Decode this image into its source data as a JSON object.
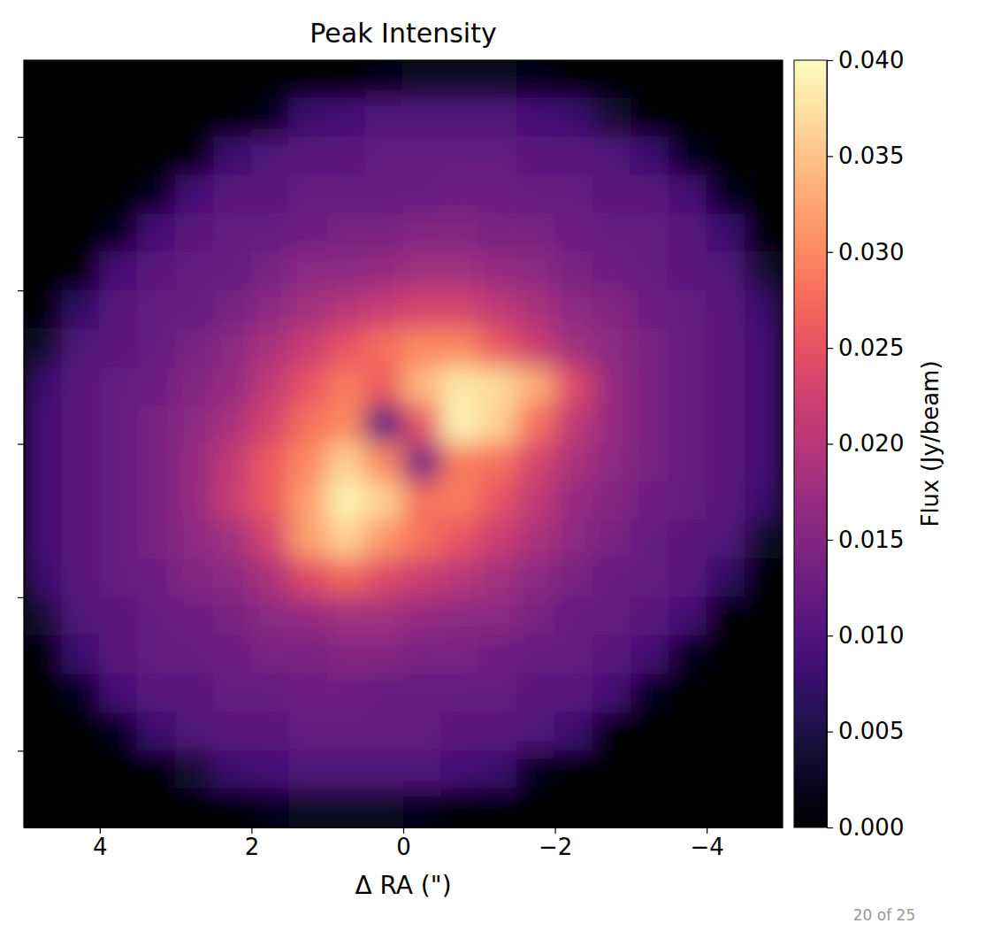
{
  "chart_data": {
    "type": "heatmap",
    "title": "Peak Intensity",
    "x_label": "Δ RA (\")",
    "x": [
      4.75,
      4.25,
      3.75,
      3.25,
      2.75,
      2.25,
      1.75,
      1.25,
      0.75,
      0.25,
      -0.25,
      -0.75,
      -1.25,
      -1.75,
      -2.25,
      -2.75,
      -3.25,
      -3.75,
      -4.25,
      -4.75
    ],
    "y": [
      4.75,
      4.25,
      3.75,
      3.25,
      2.75,
      2.25,
      1.75,
      1.25,
      0.75,
      0.25,
      -0.25,
      -0.75,
      -1.25,
      -1.75,
      -2.25,
      -2.75,
      -3.25,
      -3.75,
      -4.25,
      -4.75
    ],
    "values": [
      [
        0,
        0,
        0,
        0,
        0,
        0,
        0,
        0,
        0,
        0.002,
        0.003,
        0.003,
        0.003,
        0.002,
        0,
        0,
        0,
        0,
        0,
        0
      ],
      [
        0,
        0,
        0,
        0,
        0,
        0,
        0.002,
        0.008,
        0.009,
        0.01,
        0.01,
        0.01,
        0.01,
        0.009,
        0.008,
        0.004,
        0,
        0,
        0,
        0
      ],
      [
        0,
        0,
        0,
        0,
        0,
        0.008,
        0.01,
        0.011,
        0.011,
        0.012,
        0.012,
        0.012,
        0.012,
        0.011,
        0.011,
        0.01,
        0.008,
        0.002,
        0,
        0
      ],
      [
        0,
        0,
        0,
        0.002,
        0.009,
        0.011,
        0.011,
        0.012,
        0.012,
        0.012,
        0.012,
        0.013,
        0.013,
        0.012,
        0.012,
        0.011,
        0.011,
        0.009,
        0.002,
        0
      ],
      [
        0,
        0,
        0.002,
        0.009,
        0.011,
        0.012,
        0.012,
        0.013,
        0.014,
        0.014,
        0.015,
        0.015,
        0.014,
        0.014,
        0.013,
        0.012,
        0.012,
        0.011,
        0.008,
        0
      ],
      [
        0,
        0,
        0.009,
        0.011,
        0.012,
        0.012,
        0.014,
        0.016,
        0.016,
        0.017,
        0.018,
        0.018,
        0.017,
        0.016,
        0.014,
        0.013,
        0.012,
        0.011,
        0.01,
        0.004
      ],
      [
        0,
        0.007,
        0.011,
        0.012,
        0.012,
        0.014,
        0.016,
        0.018,
        0.02,
        0.022,
        0.023,
        0.023,
        0.021,
        0.019,
        0.016,
        0.015,
        0.013,
        0.012,
        0.011,
        0.008
      ],
      [
        0.003,
        0.01,
        0.011,
        0.012,
        0.014,
        0.016,
        0.019,
        0.022,
        0.025,
        0.028,
        0.03,
        0.03,
        0.026,
        0.022,
        0.018,
        0.016,
        0.014,
        0.012,
        0.011,
        0.009
      ],
      [
        0.008,
        0.011,
        0.012,
        0.013,
        0.015,
        0.017,
        0.021,
        0.025,
        0.029,
        0.026,
        0.034,
        0.038,
        0.037,
        0.033,
        0.024,
        0.017,
        0.014,
        0.012,
        0.011,
        0.009
      ],
      [
        0.009,
        0.011,
        0.012,
        0.014,
        0.016,
        0.019,
        0.023,
        0.028,
        0.03,
        0.012,
        0.025,
        0.039,
        0.036,
        0.028,
        0.021,
        0.017,
        0.014,
        0.012,
        0.011,
        0.009
      ],
      [
        0.009,
        0.011,
        0.012,
        0.014,
        0.017,
        0.021,
        0.026,
        0.03,
        0.036,
        0.03,
        0.014,
        0.029,
        0.028,
        0.023,
        0.019,
        0.016,
        0.014,
        0.012,
        0.011,
        0.009
      ],
      [
        0.009,
        0.011,
        0.012,
        0.014,
        0.017,
        0.022,
        0.026,
        0.032,
        0.039,
        0.036,
        0.028,
        0.029,
        0.025,
        0.021,
        0.017,
        0.015,
        0.013,
        0.012,
        0.011,
        0.008
      ],
      [
        0.009,
        0.011,
        0.012,
        0.014,
        0.016,
        0.018,
        0.023,
        0.032,
        0.036,
        0.031,
        0.028,
        0.025,
        0.022,
        0.019,
        0.016,
        0.014,
        0.012,
        0.011,
        0.01,
        0.003
      ],
      [
        0.008,
        0.011,
        0.012,
        0.013,
        0.015,
        0.016,
        0.019,
        0.024,
        0.027,
        0.024,
        0.022,
        0.02,
        0.018,
        0.016,
        0.014,
        0.012,
        0.012,
        0.011,
        0.007,
        0
      ],
      [
        0.004,
        0.01,
        0.011,
        0.012,
        0.013,
        0.014,
        0.016,
        0.017,
        0.018,
        0.018,
        0.017,
        0.016,
        0.016,
        0.014,
        0.012,
        0.012,
        0.011,
        0.009,
        0,
        0
      ],
      [
        0,
        0.008,
        0.011,
        0.012,
        0.012,
        0.013,
        0.014,
        0.014,
        0.015,
        0.015,
        0.014,
        0.014,
        0.013,
        0.012,
        0.012,
        0.011,
        0.009,
        0.002,
        0,
        0
      ],
      [
        0,
        0.002,
        0.009,
        0.011,
        0.011,
        0.012,
        0.012,
        0.013,
        0.013,
        0.012,
        0.012,
        0.012,
        0.012,
        0.011,
        0.011,
        0.009,
        0.002,
        0,
        0,
        0
      ],
      [
        0,
        0,
        0.002,
        0.008,
        0.01,
        0.011,
        0.011,
        0.012,
        0.012,
        0.012,
        0.012,
        0.011,
        0.011,
        0.01,
        0.008,
        0,
        0,
        0,
        0,
        0
      ],
      [
        0,
        0,
        0,
        0,
        0.004,
        0.008,
        0.009,
        0.01,
        0.01,
        0.01,
        0.01,
        0.009,
        0.008,
        0.002,
        0,
        0,
        0,
        0,
        0,
        0
      ],
      [
        0,
        0,
        0,
        0,
        0,
        0,
        0.002,
        0.003,
        0.003,
        0.003,
        0.002,
        0,
        0,
        0,
        0,
        0,
        0,
        0,
        0,
        0
      ]
    ],
    "xlim": [
      5,
      -5
    ],
    "ylim": [
      -5,
      5
    ],
    "xticks": [
      4,
      2,
      0,
      {
        "value": -2,
        "label": "−2"
      },
      {
        "value": -4,
        "label": "−4"
      }
    ],
    "yticks": [
      4,
      2,
      0,
      -2,
      -4
    ],
    "tick_labels": "x",
    "colorbar": {
      "label": "Flux (Jy/beam)",
      "range": [
        0,
        0.04
      ],
      "ticks": [
        {
          "value": 0,
          "label": "0.000"
        },
        {
          "value": 0.005,
          "label": "0.005"
        },
        {
          "value": 0.01,
          "label": "0.010"
        },
        {
          "value": 0.015,
          "label": "0.015"
        },
        {
          "value": 0.02,
          "label": "0.020"
        },
        {
          "value": 0.025,
          "label": "0.025"
        },
        {
          "value": 0.03,
          "label": "0.030"
        },
        {
          "value": 0.035,
          "label": "0.035"
        },
        {
          "value": 0.04,
          "label": "0.040"
        }
      ]
    },
    "annotations": [
      "20 of 25"
    ]
  }
}
